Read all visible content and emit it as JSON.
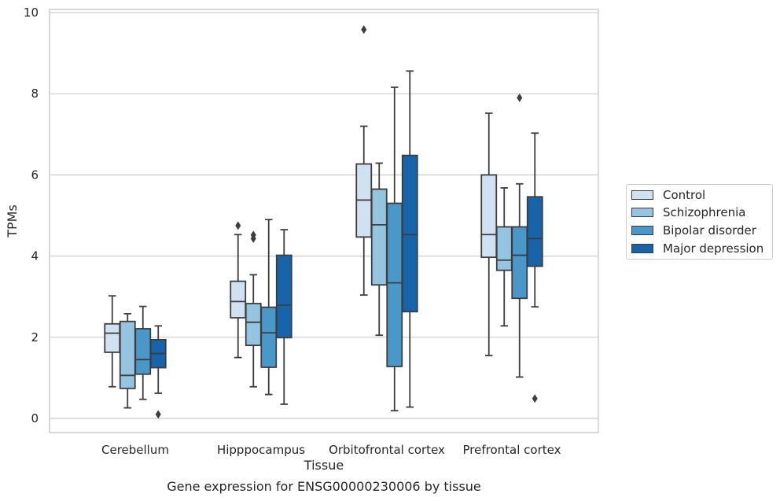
{
  "chart_data": {
    "type": "box",
    "title": "",
    "xlabel": "Tissue",
    "ylabel": "TPMs",
    "caption": "Gene expression for ENSG00000230006 by tissue",
    "ylim": [
      -0.35,
      10.08
    ],
    "yticks": [
      "0",
      "2",
      "4",
      "6",
      "8",
      "10"
    ],
    "grid": "horizontal",
    "legend_position": "right",
    "categories": [
      "Cerebellum",
      "Hipppocampus",
      "Orbitofrontal cortex",
      "Prefrontal cortex"
    ],
    "series": [
      {
        "name": "Control",
        "color": "#d0e1f2",
        "boxes": [
          {
            "whislo": 0.78,
            "q1": 1.63,
            "med": 2.1,
            "q3": 2.33,
            "whishi": 3.02,
            "fliers": []
          },
          {
            "whislo": 1.5,
            "q1": 2.48,
            "med": 2.88,
            "q3": 3.38,
            "whishi": 4.53,
            "fliers": [
              4.75
            ]
          },
          {
            "whislo": 3.04,
            "q1": 4.47,
            "med": 5.38,
            "q3": 6.27,
            "whishi": 7.2,
            "fliers": [
              9.58
            ]
          },
          {
            "whislo": 1.55,
            "q1": 3.97,
            "med": 4.53,
            "q3": 6.0,
            "whishi": 7.52,
            "fliers": []
          }
        ]
      },
      {
        "name": "Schizophrenia",
        "color": "#94c4df",
        "boxes": [
          {
            "whislo": 0.26,
            "q1": 0.74,
            "med": 1.06,
            "q3": 2.39,
            "whishi": 2.58,
            "fliers": []
          },
          {
            "whislo": 0.78,
            "q1": 1.8,
            "med": 2.37,
            "q3": 2.83,
            "whishi": 3.54,
            "fliers": [
              4.43,
              4.52
            ]
          },
          {
            "whislo": 2.05,
            "q1": 3.29,
            "med": 4.77,
            "q3": 5.65,
            "whishi": 6.29,
            "fliers": []
          },
          {
            "whislo": 2.28,
            "q1": 3.65,
            "med": 3.9,
            "q3": 4.72,
            "whishi": 5.68,
            "fliers": []
          }
        ]
      },
      {
        "name": "Bipolar disorder",
        "color": "#4a98c9",
        "boxes": [
          {
            "whislo": 0.47,
            "q1": 1.09,
            "med": 1.45,
            "q3": 2.21,
            "whishi": 2.76,
            "fliers": []
          },
          {
            "whislo": 0.59,
            "q1": 1.26,
            "med": 2.11,
            "q3": 2.74,
            "whishi": 4.9,
            "fliers": []
          },
          {
            "whislo": 0.19,
            "q1": 1.28,
            "med": 3.34,
            "q3": 5.3,
            "whishi": 8.16,
            "fliers": []
          },
          {
            "whislo": 1.02,
            "q1": 2.96,
            "med": 4.02,
            "q3": 4.72,
            "whishi": 5.78,
            "fliers": [
              7.9
            ]
          }
        ]
      },
      {
        "name": "Major depression",
        "color": "#1764ab",
        "boxes": [
          {
            "whislo": 0.62,
            "q1": 1.25,
            "med": 1.6,
            "q3": 1.94,
            "whishi": 2.28,
            "fliers": [
              0.1
            ]
          },
          {
            "whislo": 0.35,
            "q1": 1.99,
            "med": 2.79,
            "q3": 4.02,
            "whishi": 4.65,
            "fliers": []
          },
          {
            "whislo": 0.28,
            "q1": 2.63,
            "med": 4.53,
            "q3": 6.48,
            "whishi": 8.56,
            "fliers": []
          },
          {
            "whislo": 2.75,
            "q1": 3.75,
            "med": 4.43,
            "q3": 5.46,
            "whishi": 7.03,
            "fliers": [
              0.49
            ]
          }
        ]
      }
    ]
  }
}
